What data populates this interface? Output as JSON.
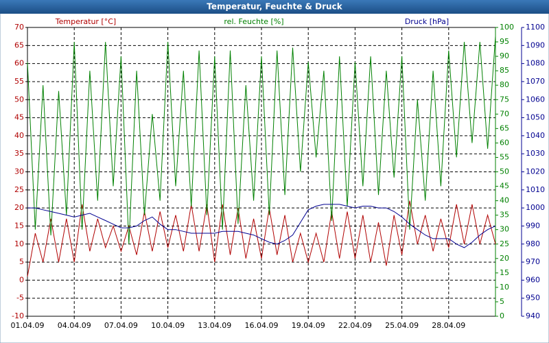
{
  "chart_data": {
    "type": "line",
    "title": "Temperatur, Feuchte & Druck",
    "ylabel": "Temperatur [°C]",
    "y2label": "rel. Feuchte [%]",
    "y3label": "Druck [hPa]",
    "xlim": [
      0,
      30
    ],
    "xticks": [
      {
        "value": 0,
        "label": "01.04.09"
      },
      {
        "value": 3,
        "label": "04.04.09"
      },
      {
        "value": 6,
        "label": "07.04.09"
      },
      {
        "value": 9,
        "label": "10.04.09"
      },
      {
        "value": 12,
        "label": "13.04.09"
      },
      {
        "value": 15,
        "label": "16.04.09"
      },
      {
        "value": 18,
        "label": "19.04.09"
      },
      {
        "value": 21,
        "label": "22.04.09"
      },
      {
        "value": 24,
        "label": "25.04.09"
      },
      {
        "value": 27,
        "label": "28.04.09"
      }
    ],
    "ylim": [
      -10,
      70
    ],
    "yticks": [
      -10,
      -5,
      0,
      5,
      10,
      15,
      20,
      25,
      30,
      35,
      40,
      45,
      50,
      55,
      60,
      65,
      70
    ],
    "y2lim": [
      0,
      100
    ],
    "y2ticks": [
      0,
      5,
      10,
      15,
      20,
      25,
      30,
      35,
      40,
      45,
      50,
      55,
      60,
      65,
      70,
      75,
      80,
      85,
      90,
      95,
      100
    ],
    "y3lim": [
      940,
      1100
    ],
    "y3ticks": [
      940,
      950,
      960,
      970,
      980,
      990,
      1000,
      1010,
      1020,
      1030,
      1040,
      1050,
      1060,
      1070,
      1080,
      1090,
      1100
    ],
    "grid": true,
    "x": [
      0,
      0.5,
      1,
      1.5,
      2,
      2.5,
      3,
      3.5,
      4,
      4.5,
      5,
      5.5,
      6,
      6.5,
      7,
      7.5,
      8,
      8.5,
      9,
      9.5,
      10,
      10.5,
      11,
      11.5,
      12,
      12.5,
      13,
      13.5,
      14,
      14.5,
      15,
      15.5,
      16,
      16.5,
      17,
      17.5,
      18,
      18.5,
      19,
      19.5,
      20,
      20.5,
      21,
      21.5,
      22,
      22.5,
      23,
      23.5,
      24,
      24.5,
      25,
      25.5,
      26,
      26.5,
      27,
      27.5,
      28,
      28.5,
      29,
      29.5,
      30
    ],
    "series": [
      {
        "name": "Temperatur",
        "color": "#b00000",
        "axis": "y",
        "values": [
          1,
          13,
          5,
          17,
          5,
          17,
          5,
          21,
          8,
          17,
          9,
          15,
          8,
          15,
          7,
          19,
          8,
          19,
          9,
          18,
          8,
          21,
          8,
          21,
          5,
          21,
          7,
          20,
          6,
          17,
          6,
          20,
          7,
          18,
          5,
          13,
          5,
          13,
          5,
          19,
          6,
          19,
          6,
          18,
          5,
          16,
          4,
          18,
          7,
          22,
          10,
          18,
          8,
          17,
          9,
          21,
          10,
          21,
          10,
          18,
          10
        ]
      },
      {
        "name": "rel. Feuchte",
        "color": "#008000",
        "axis": "y2",
        "values": [
          88,
          30,
          80,
          28,
          78,
          35,
          95,
          30,
          85,
          40,
          95,
          45,
          90,
          25,
          85,
          35,
          70,
          40,
          95,
          45,
          85,
          38,
          92,
          35,
          90,
          30,
          92,
          32,
          80,
          40,
          90,
          35,
          92,
          42,
          93,
          50,
          88,
          55,
          85,
          33,
          90,
          38,
          88,
          45,
          90,
          42,
          85,
          48,
          90,
          30,
          75,
          40,
          85,
          45,
          92,
          55,
          95,
          60,
          95,
          58,
          97
        ]
      },
      {
        "name": "Druck",
        "color": "#000090",
        "axis": "y3",
        "values": [
          1000,
          1000,
          999,
          998,
          997,
          996,
          995,
          996,
          997,
          995,
          993,
          991,
          989,
          989,
          990,
          993,
          995,
          991,
          988,
          988,
          987,
          986,
          986,
          986,
          986,
          987,
          987,
          987,
          986,
          985,
          983,
          981,
          980,
          982,
          985,
          992,
          999,
          1001,
          1002,
          1002,
          1002,
          1001,
          1000,
          1001,
          1001,
          1000,
          1000,
          998,
          995,
          991,
          988,
          985,
          983,
          983,
          983,
          980,
          978,
          981,
          985,
          988,
          990
        ]
      }
    ]
  }
}
